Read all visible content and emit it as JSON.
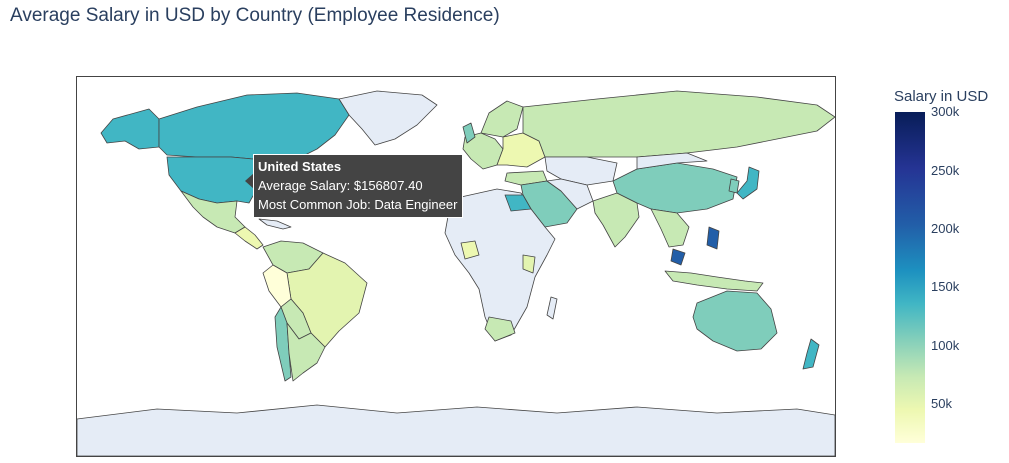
{
  "title": "Average Salary in USD by Country (Employee Residence)",
  "colorbar": {
    "title": "Salary in USD",
    "ticks": [
      "300k",
      "250k",
      "200k",
      "150k",
      "100k",
      "50k"
    ],
    "colorscale": [
      "#ffffd9",
      "#edf8b1",
      "#c7e9b4",
      "#7fcdbb",
      "#41b6c4",
      "#1d91c0",
      "#225ea8",
      "#253494",
      "#081d58"
    ]
  },
  "map": {
    "no_data_color": "#e5ecf6",
    "border_color": "#444444",
    "hover": {
      "country": "United States",
      "avg_salary": "Average Salary: $156807.40",
      "common_job": "Most Common Job: Data Engineer"
    }
  }
}
